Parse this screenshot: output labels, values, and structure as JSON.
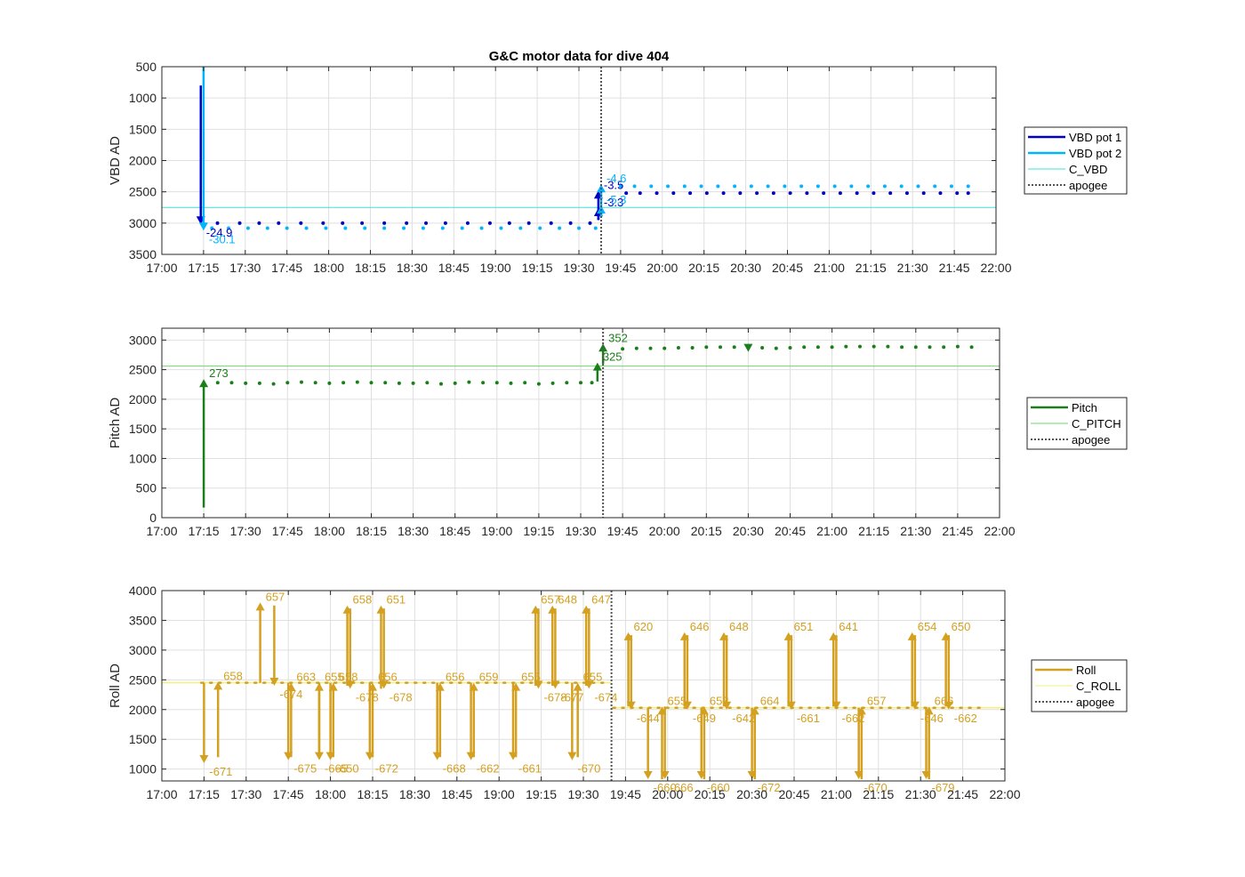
{
  "chart_data": [
    {
      "type": "line",
      "title": "G&C motor data for dive 404",
      "xlabel": "",
      "ylabel": "VBD AD",
      "xlim": [
        "17:00",
        "22:00"
      ],
      "xticks": [
        "17:00",
        "17:15",
        "17:30",
        "17:45",
        "18:00",
        "18:15",
        "18:30",
        "18:45",
        "19:00",
        "19:15",
        "19:30",
        "19:45",
        "20:00",
        "20:15",
        "20:30",
        "20:45",
        "21:00",
        "21:15",
        "21:30",
        "21:45",
        "22:00"
      ],
      "ylim": [
        500,
        3500
      ],
      "y_reversed": true,
      "yticks": [
        500,
        1000,
        1500,
        2000,
        2500,
        3000,
        3500
      ],
      "grid": true,
      "legend_position": "right",
      "colors": {
        "VBD pot 1": "#0000c8",
        "VBD pot 2": "#00b4ff",
        "C_VBD": "#40e0d8",
        "apogee": "#555555"
      },
      "apogee": "19:38",
      "series": [
        {
          "name": "VBD pot 1",
          "style": "solid",
          "dots_y": 3000,
          "dots_x": [
            "17:20",
            "17:28",
            "17:35",
            "17:42",
            "17:50",
            "17:58",
            "18:05",
            "18:12",
            "18:20",
            "18:28",
            "18:35",
            "18:42",
            "18:50",
            "18:58",
            "19:05",
            "19:12",
            "19:20",
            "19:27",
            "19:34"
          ],
          "dots_y2": 2520,
          "dots_x2": [
            "19:47",
            "19:52",
            "19:58",
            "20:04",
            "20:10",
            "20:16",
            "20:22",
            "20:28",
            "20:34",
            "20:40",
            "20:46",
            "20:52",
            "20:58",
            "21:04",
            "21:10",
            "21:16",
            "21:22",
            "21:28",
            "21:34",
            "21:40",
            "21:46",
            "21:50"
          ]
        },
        {
          "name": "VBD pot 2",
          "style": "solid",
          "dots_y": 3080,
          "dots_x": [
            "17:18",
            "17:24",
            "17:31",
            "17:38",
            "17:45",
            "17:52",
            "17:59",
            "18:06",
            "18:13",
            "18:20",
            "18:27",
            "18:34",
            "18:41",
            "18:48",
            "18:55",
            "19:02",
            "19:09",
            "19:16",
            "19:23",
            "19:30",
            "19:36"
          ],
          "dots_y2": 2410,
          "dots_x2": [
            "19:45",
            "19:50",
            "19:56",
            "20:02",
            "20:08",
            "20:14",
            "20:20",
            "20:26",
            "20:32",
            "20:38",
            "20:44",
            "20:50",
            "20:56",
            "21:02",
            "21:08",
            "21:14",
            "21:20",
            "21:26",
            "21:32",
            "21:38",
            "21:44",
            "21:50"
          ]
        },
        {
          "name": "C_VBD",
          "style": "solid",
          "y": 2750
        },
        {
          "name": "apogee",
          "style": "dotted"
        }
      ],
      "arrows": [
        {
          "x": "17:14",
          "from": 800,
          "to": 3020,
          "label": "-24.9",
          "series": "VBD pot 1"
        },
        {
          "x": "17:15",
          "from": 500,
          "to": 3120,
          "label": "-30.1",
          "series": "VBD pot 2"
        },
        {
          "x": "19:37",
          "from": 2950,
          "to": 2480,
          "label": "-3.5",
          "series": "VBD pot 1"
        },
        {
          "x": "19:37",
          "from": 2950,
          "to": 2760,
          "label": "-3.3",
          "series": "VBD pot 1"
        },
        {
          "x": "19:38",
          "from": 2900,
          "to": 2380,
          "label": "-4.6",
          "series": "VBD pot 2"
        },
        {
          "x": "19:38",
          "from": 2900,
          "to": 2720,
          "label": "-5.3",
          "series": "VBD pot 2"
        }
      ]
    },
    {
      "type": "line",
      "title": "",
      "xlabel": "",
      "ylabel": "Pitch AD",
      "xlim": [
        "17:00",
        "22:00"
      ],
      "xticks": [
        "17:00",
        "17:15",
        "17:30",
        "17:45",
        "18:00",
        "18:15",
        "18:30",
        "18:45",
        "19:00",
        "19:15",
        "19:30",
        "19:45",
        "20:00",
        "20:15",
        "20:30",
        "20:45",
        "21:00",
        "21:15",
        "21:30",
        "21:45",
        "22:00"
      ],
      "ylim": [
        0,
        3200
      ],
      "yticks": [
        0,
        500,
        1000,
        1500,
        2000,
        2500,
        3000
      ],
      "grid": true,
      "legend_position": "right",
      "colors": {
        "Pitch": "#1a7f1a",
        "C_PITCH": "#66dd66",
        "apogee": "#555555"
      },
      "apogee": "19:38",
      "series": [
        {
          "name": "Pitch",
          "style": "solid",
          "dots_x": [
            "17:20",
            "17:25",
            "17:30",
            "17:35",
            "17:40",
            "17:45",
            "17:50",
            "17:55",
            "18:00",
            "18:05",
            "18:10",
            "18:15",
            "18:20",
            "18:25",
            "18:30",
            "18:35",
            "18:40",
            "18:45",
            "18:50",
            "18:55",
            "19:00",
            "19:05",
            "19:10",
            "19:15",
            "19:20",
            "19:25",
            "19:30",
            "19:34"
          ],
          "dots_y": [
            2280,
            2280,
            2270,
            2270,
            2260,
            2280,
            2290,
            2280,
            2270,
            2280,
            2290,
            2280,
            2280,
            2270,
            2270,
            2280,
            2260,
            2270,
            2290,
            2280,
            2280,
            2270,
            2280,
            2260,
            2270,
            2280,
            2280,
            2280
          ],
          "dots_x2": [
            "19:45",
            "19:50",
            "19:55",
            "20:00",
            "20:05",
            "20:10",
            "20:15",
            "20:20",
            "20:25",
            "20:35",
            "20:40",
            "20:45",
            "20:50",
            "20:55",
            "21:00",
            "21:05",
            "21:10",
            "21:15",
            "21:20",
            "21:25",
            "21:30",
            "21:35",
            "21:40",
            "21:45",
            "21:50"
          ],
          "dots_y2": [
            2850,
            2860,
            2860,
            2860,
            2870,
            2870,
            2880,
            2880,
            2880,
            2870,
            2860,
            2870,
            2880,
            2880,
            2880,
            2890,
            2890,
            2890,
            2890,
            2880,
            2880,
            2880,
            2880,
            2890,
            2880
          ]
        },
        {
          "name": "C_PITCH",
          "style": "solid",
          "y": 2560
        },
        {
          "name": "apogee",
          "style": "dotted"
        }
      ],
      "arrows": [
        {
          "x": "17:15",
          "from": 170,
          "to": 2340,
          "label": "273"
        },
        {
          "x": "19:36",
          "from": 2300,
          "to": 2620,
          "label": "325"
        },
        {
          "x": "19:38",
          "from": 2600,
          "to": 2940,
          "label": "352"
        },
        {
          "x": "20:30",
          "from": 2900,
          "to": 2800,
          "label": ""
        }
      ]
    },
    {
      "type": "line",
      "title": "",
      "xlabel": "",
      "ylabel": "Roll AD",
      "xlim": [
        "17:00",
        "22:00"
      ],
      "xticks": [
        "17:00",
        "17:15",
        "17:30",
        "17:45",
        "18:00",
        "18:15",
        "18:30",
        "18:45",
        "19:00",
        "19:15",
        "19:30",
        "19:45",
        "20:00",
        "20:15",
        "20:30",
        "20:45",
        "21:00",
        "21:15",
        "21:30",
        "21:45",
        "22:00"
      ],
      "ylim": [
        800,
        4000
      ],
      "yticks": [
        1000,
        1500,
        2000,
        2500,
        3000,
        3500,
        4000
      ],
      "grid": true,
      "legend_position": "right",
      "colors": {
        "Roll": "#d4a020",
        "C_ROLL": "#f5f07a",
        "apogee": "#555555"
      },
      "apogee": "19:40",
      "series": [
        {
          "name": "Roll",
          "style": "solid",
          "base1": 2450,
          "base2": 2030
        },
        {
          "name": "C_ROLL",
          "style": "solid",
          "y1": 2450,
          "y2": 2030
        },
        {
          "name": "apogee",
          "style": "dotted"
        }
      ],
      "arrows": [
        {
          "x": "17:15",
          "from": 2450,
          "to": 1100,
          "label": "-671"
        },
        {
          "x": "17:20",
          "from": 1200,
          "to": 2470,
          "label": "658"
        },
        {
          "x": "17:35",
          "from": 2450,
          "to": 3800,
          "label": "657"
        },
        {
          "x": "17:40",
          "from": 3750,
          "to": 2400,
          "label": "-674"
        },
        {
          "x": "17:45",
          "from": 2450,
          "to": 1150,
          "label": "-675"
        },
        {
          "x": "17:46",
          "from": 1200,
          "to": 2450,
          "label": "663"
        },
        {
          "x": "17:56",
          "from": 1200,
          "to": 2450,
          "label": "655"
        },
        {
          "x": "17:56",
          "from": 2450,
          "to": 1150,
          "label": "-665"
        },
        {
          "x": "18:00",
          "from": 2450,
          "to": 1150,
          "label": "-650"
        },
        {
          "x": "18:01",
          "from": 1200,
          "to": 2450,
          "label": "658"
        },
        {
          "x": "18:06",
          "from": 2400,
          "to": 3750,
          "label": "658"
        },
        {
          "x": "18:07",
          "from": 3700,
          "to": 2350,
          "label": "-678"
        },
        {
          "x": "18:14",
          "from": 2450,
          "to": 1150,
          "label": "-672"
        },
        {
          "x": "18:15",
          "from": 1200,
          "to": 2450,
          "label": "656"
        },
        {
          "x": "18:18",
          "from": 2350,
          "to": 3750,
          "label": "651"
        },
        {
          "x": "18:19",
          "from": 3700,
          "to": 2350,
          "label": "-678"
        },
        {
          "x": "18:38",
          "from": 2450,
          "to": 1150,
          "label": "-668"
        },
        {
          "x": "18:39",
          "from": 1200,
          "to": 2450,
          "label": "656"
        },
        {
          "x": "18:50",
          "from": 2450,
          "to": 1150,
          "label": "-662"
        },
        {
          "x": "18:51",
          "from": 1200,
          "to": 2450,
          "label": "659"
        },
        {
          "x": "19:05",
          "from": 2450,
          "to": 1150,
          "label": "-661"
        },
        {
          "x": "19:06",
          "from": 1200,
          "to": 2450,
          "label": "655"
        },
        {
          "x": "19:13",
          "from": 2400,
          "to": 3750,
          "label": "657"
        },
        {
          "x": "19:14",
          "from": 3700,
          "to": 2350,
          "label": "-678"
        },
        {
          "x": "19:19",
          "from": 2400,
          "to": 3750,
          "label": "648"
        },
        {
          "x": "19:20",
          "from": 3700,
          "to": 2350,
          "label": "-677"
        },
        {
          "x": "19:26",
          "from": 2450,
          "to": 1150,
          "label": "-670"
        },
        {
          "x": "19:28",
          "from": 1200,
          "to": 2450,
          "label": "655"
        },
        {
          "x": "19:31",
          "from": 2400,
          "to": 3750,
          "label": "647"
        },
        {
          "x": "19:32",
          "from": 3700,
          "to": 2350,
          "label": "-674"
        },
        {
          "x": "19:46",
          "from": 2050,
          "to": 3300,
          "label": "620"
        },
        {
          "x": "19:47",
          "from": 3250,
          "to": 2000,
          "label": "-644"
        },
        {
          "x": "19:53",
          "from": 2030,
          "to": 830,
          "label": "-660"
        },
        {
          "x": "19:58",
          "from": 830,
          "to": 2050,
          "label": "655"
        },
        {
          "x": "19:59",
          "from": 2050,
          "to": 830,
          "label": "-666"
        },
        {
          "x": "20:06",
          "from": 2050,
          "to": 3300,
          "label": "646"
        },
        {
          "x": "20:07",
          "from": 3250,
          "to": 2000,
          "label": "-649"
        },
        {
          "x": "20:12",
          "from": 2030,
          "to": 830,
          "label": "-660"
        },
        {
          "x": "20:13",
          "from": 830,
          "to": 2050,
          "label": "653"
        },
        {
          "x": "20:20",
          "from": 2050,
          "to": 3300,
          "label": "648"
        },
        {
          "x": "20:21",
          "from": 3250,
          "to": 2000,
          "label": "-642"
        },
        {
          "x": "20:30",
          "from": 2030,
          "to": 830,
          "label": "-672"
        },
        {
          "x": "20:31",
          "from": 830,
          "to": 2050,
          "label": "664"
        },
        {
          "x": "20:43",
          "from": 2050,
          "to": 3300,
          "label": "651"
        },
        {
          "x": "20:44",
          "from": 3250,
          "to": 2000,
          "label": "-661"
        },
        {
          "x": "20:59",
          "from": 2050,
          "to": 3300,
          "label": "641"
        },
        {
          "x": "21:00",
          "from": 3250,
          "to": 2000,
          "label": "-662"
        },
        {
          "x": "21:08",
          "from": 2030,
          "to": 830,
          "label": "-670"
        },
        {
          "x": "21:09",
          "from": 830,
          "to": 2050,
          "label": "657"
        },
        {
          "x": "21:27",
          "from": 2050,
          "to": 3300,
          "label": "654"
        },
        {
          "x": "21:28",
          "from": 3250,
          "to": 2000,
          "label": "-646"
        },
        {
          "x": "21:32",
          "from": 2030,
          "to": 830,
          "label": "-679"
        },
        {
          "x": "21:33",
          "from": 830,
          "to": 2050,
          "label": "666"
        },
        {
          "x": "21:39",
          "from": 2050,
          "to": 3300,
          "label": "650"
        },
        {
          "x": "21:40",
          "from": 3250,
          "to": 2000,
          "label": "-662"
        }
      ]
    }
  ]
}
